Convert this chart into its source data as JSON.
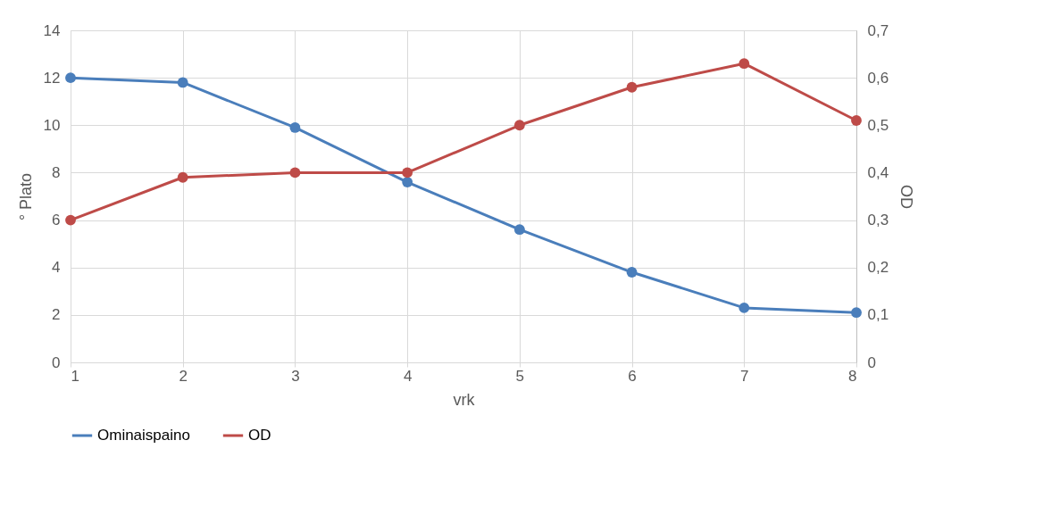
{
  "chart_data": {
    "type": "line",
    "xlabel": "vrk",
    "ylabel": "° Plato",
    "y2label": "OD",
    "x": [
      1,
      2,
      3,
      4,
      5,
      6,
      7,
      8
    ],
    "series": [
      {
        "name": "Ominaispaino",
        "color": "#4a7ebb",
        "values": [
          12.0,
          11.8,
          9.9,
          7.6,
          5.6,
          3.8,
          2.3,
          2.1
        ]
      },
      {
        "name": "OD",
        "color": "#be4b48",
        "axis": "y2",
        "values": [
          0.3,
          0.39,
          0.4,
          0.4,
          0.5,
          0.58,
          0.63,
          0.51
        ]
      }
    ],
    "xlim": [
      1,
      8
    ],
    "xticks": [
      1,
      2,
      3,
      4,
      5,
      6,
      7,
      8
    ],
    "ylim": [
      0,
      14
    ],
    "yticks": [
      0,
      2,
      4,
      6,
      8,
      10,
      12,
      14
    ],
    "y2lim": [
      0,
      0.7
    ],
    "y2ticks": [
      0,
      {
        "value": 0.1,
        "label": "0,1"
      },
      {
        "value": 0.2,
        "label": "0,2"
      },
      {
        "value": 0.3,
        "label": "0,3"
      },
      {
        "value": 0.4,
        "label": "0,4"
      },
      {
        "value": 0.5,
        "label": "0,5"
      },
      {
        "value": 0.6,
        "label": "0,6"
      },
      {
        "value": 0.7,
        "label": "0,7"
      }
    ],
    "grid": true,
    "legend": "bottom",
    "marker": "circle",
    "line_style": "solid"
  }
}
